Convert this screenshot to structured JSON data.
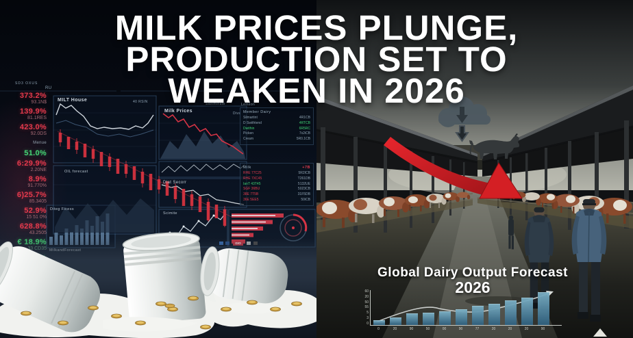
{
  "headline": {
    "line1": "MILK PRICES PLUNGE,",
    "line2": "PRODUCTION SET TO",
    "line3": "WEAKEN IN 2026"
  },
  "left_dashboard": {
    "header": {
      "left": "SD3 OXUS",
      "right": "RU"
    },
    "ticker": [
      {
        "value": "373.2%",
        "sub": "93.1N$",
        "trend": "down"
      },
      {
        "value": "139.9%",
        "sub": "81.1RES",
        "trend": "down"
      },
      {
        "value": "423.0%",
        "sub": "92.0DS",
        "trend": "down"
      },
      {
        "value": "Menue",
        "sub": "",
        "trend": "lab"
      },
      {
        "value": "51.0%",
        "sub": "",
        "trend": "up"
      },
      {
        "value": "6:29.9%",
        "sub": "2.20NE",
        "trend": "down"
      },
      {
        "value": "8.9%",
        "sub": "91.770%",
        "trend": "down"
      },
      {
        "value": "6)25.7%",
        "sub": "85.3405",
        "trend": "down"
      },
      {
        "value": "52.9%",
        "sub": "15 51 0%",
        "trend": "down"
      },
      {
        "value": "628.8%",
        "sub": "43.2505",
        "trend": "down"
      },
      {
        "value": "€ 18.9%",
        "sub": "33 CD35",
        "trend": "up"
      },
      {
        "value": "78.3%",
        "sub": "88.1570%",
        "trend": "up"
      }
    ],
    "panels": {
      "milt": {
        "label": "MILT House",
        "right": "40 RSIN"
      },
      "saxim": {
        "label": "Saximinuts"
      },
      "lemson": {
        "label": "Lemson"
      },
      "milk_prices": {
        "label": "Milk Prices",
        "right": "Divs"
      },
      "oil": {
        "label": "OIL forecast"
      },
      "dlat": {
        "label": "Dlat Secorr"
      },
      "scimite": {
        "label": "Scimite"
      },
      "bars": {
        "label": "Diteg Ficess",
        "footer": "MilkandForecast"
      },
      "chip": {
        "label": "GtO"
      }
    },
    "table_top": {
      "title": "Member Dairy",
      "rows": [
        {
          "name": "Silmartint",
          "value": "4R1CB",
          "nc": "dim",
          "vc": "dim"
        },
        {
          "name": "D Swithtend",
          "value": "4RTCB",
          "nc": "dim",
          "vc": "green"
        },
        {
          "name": "Dwithin",
          "value": "6R5RC",
          "nc": "green",
          "vc": "green"
        },
        {
          "name": "Picken",
          "value": "7x2iCB",
          "nc": "dim",
          "vc": "dim"
        },
        {
          "name": "Cream",
          "value": "5R0.1CB",
          "nc": "dim",
          "vc": "dim"
        }
      ]
    },
    "table_mid": {
      "title": "Milk",
      "badge": "+7B",
      "rows": [
        {
          "name": "RHE 77C25",
          "value": "5R2ICB",
          "nc": "red",
          "vc": "dim"
        },
        {
          "name": "RHE 7XC45",
          "value": "T261DB",
          "nc": "red",
          "vc": "dim"
        },
        {
          "name": "IanT 43T45",
          "value": "5132UE",
          "nc": "green",
          "vc": "dim"
        },
        {
          "name": "SGF 36BU",
          "value": "5023CB",
          "nc": "red",
          "vc": "dim"
        },
        {
          "name": "38E 7T5B",
          "value": "31F5DB",
          "nc": "red",
          "vc": "dim"
        },
        {
          "name": "36E 5EE5",
          "value": "50iCB",
          "nc": "red",
          "vc": "dim"
        }
      ]
    }
  },
  "right_scene": {
    "forecast": {
      "title": "Global Dairy Output Forecast",
      "year": "2026"
    },
    "icons": {
      "cloud": "cloud-download-icon",
      "down_arrow": "down-arrow-icon",
      "cow": "cow-silhouette-icon",
      "decline": "red-decline-arrow",
      "triangle": "up-triangle-marker"
    }
  },
  "chart_data": {
    "type": "bar",
    "title": "Global Dairy Output Forecast 2026",
    "categories": [
      "0",
      "20",
      "90",
      "50",
      "00",
      "90",
      "77",
      "20",
      "20",
      "20",
      "90"
    ],
    "values": [
      11,
      19,
      31,
      33,
      37,
      44,
      52,
      59,
      68,
      76,
      93
    ],
    "y_ticks": [
      "60",
      "20",
      "50",
      "55",
      "5",
      "3",
      "0"
    ],
    "xlabel": "",
    "ylabel": "",
    "legend": "none",
    "grid": "off",
    "trend_line": "rising with arrow",
    "bar_color": "#4e87a0",
    "line_color": "#d9dedc"
  },
  "colors": {
    "red": "#e53a4d",
    "green": "#46d475",
    "arrow_red": "#d41f24",
    "headline": "#ffffff"
  }
}
